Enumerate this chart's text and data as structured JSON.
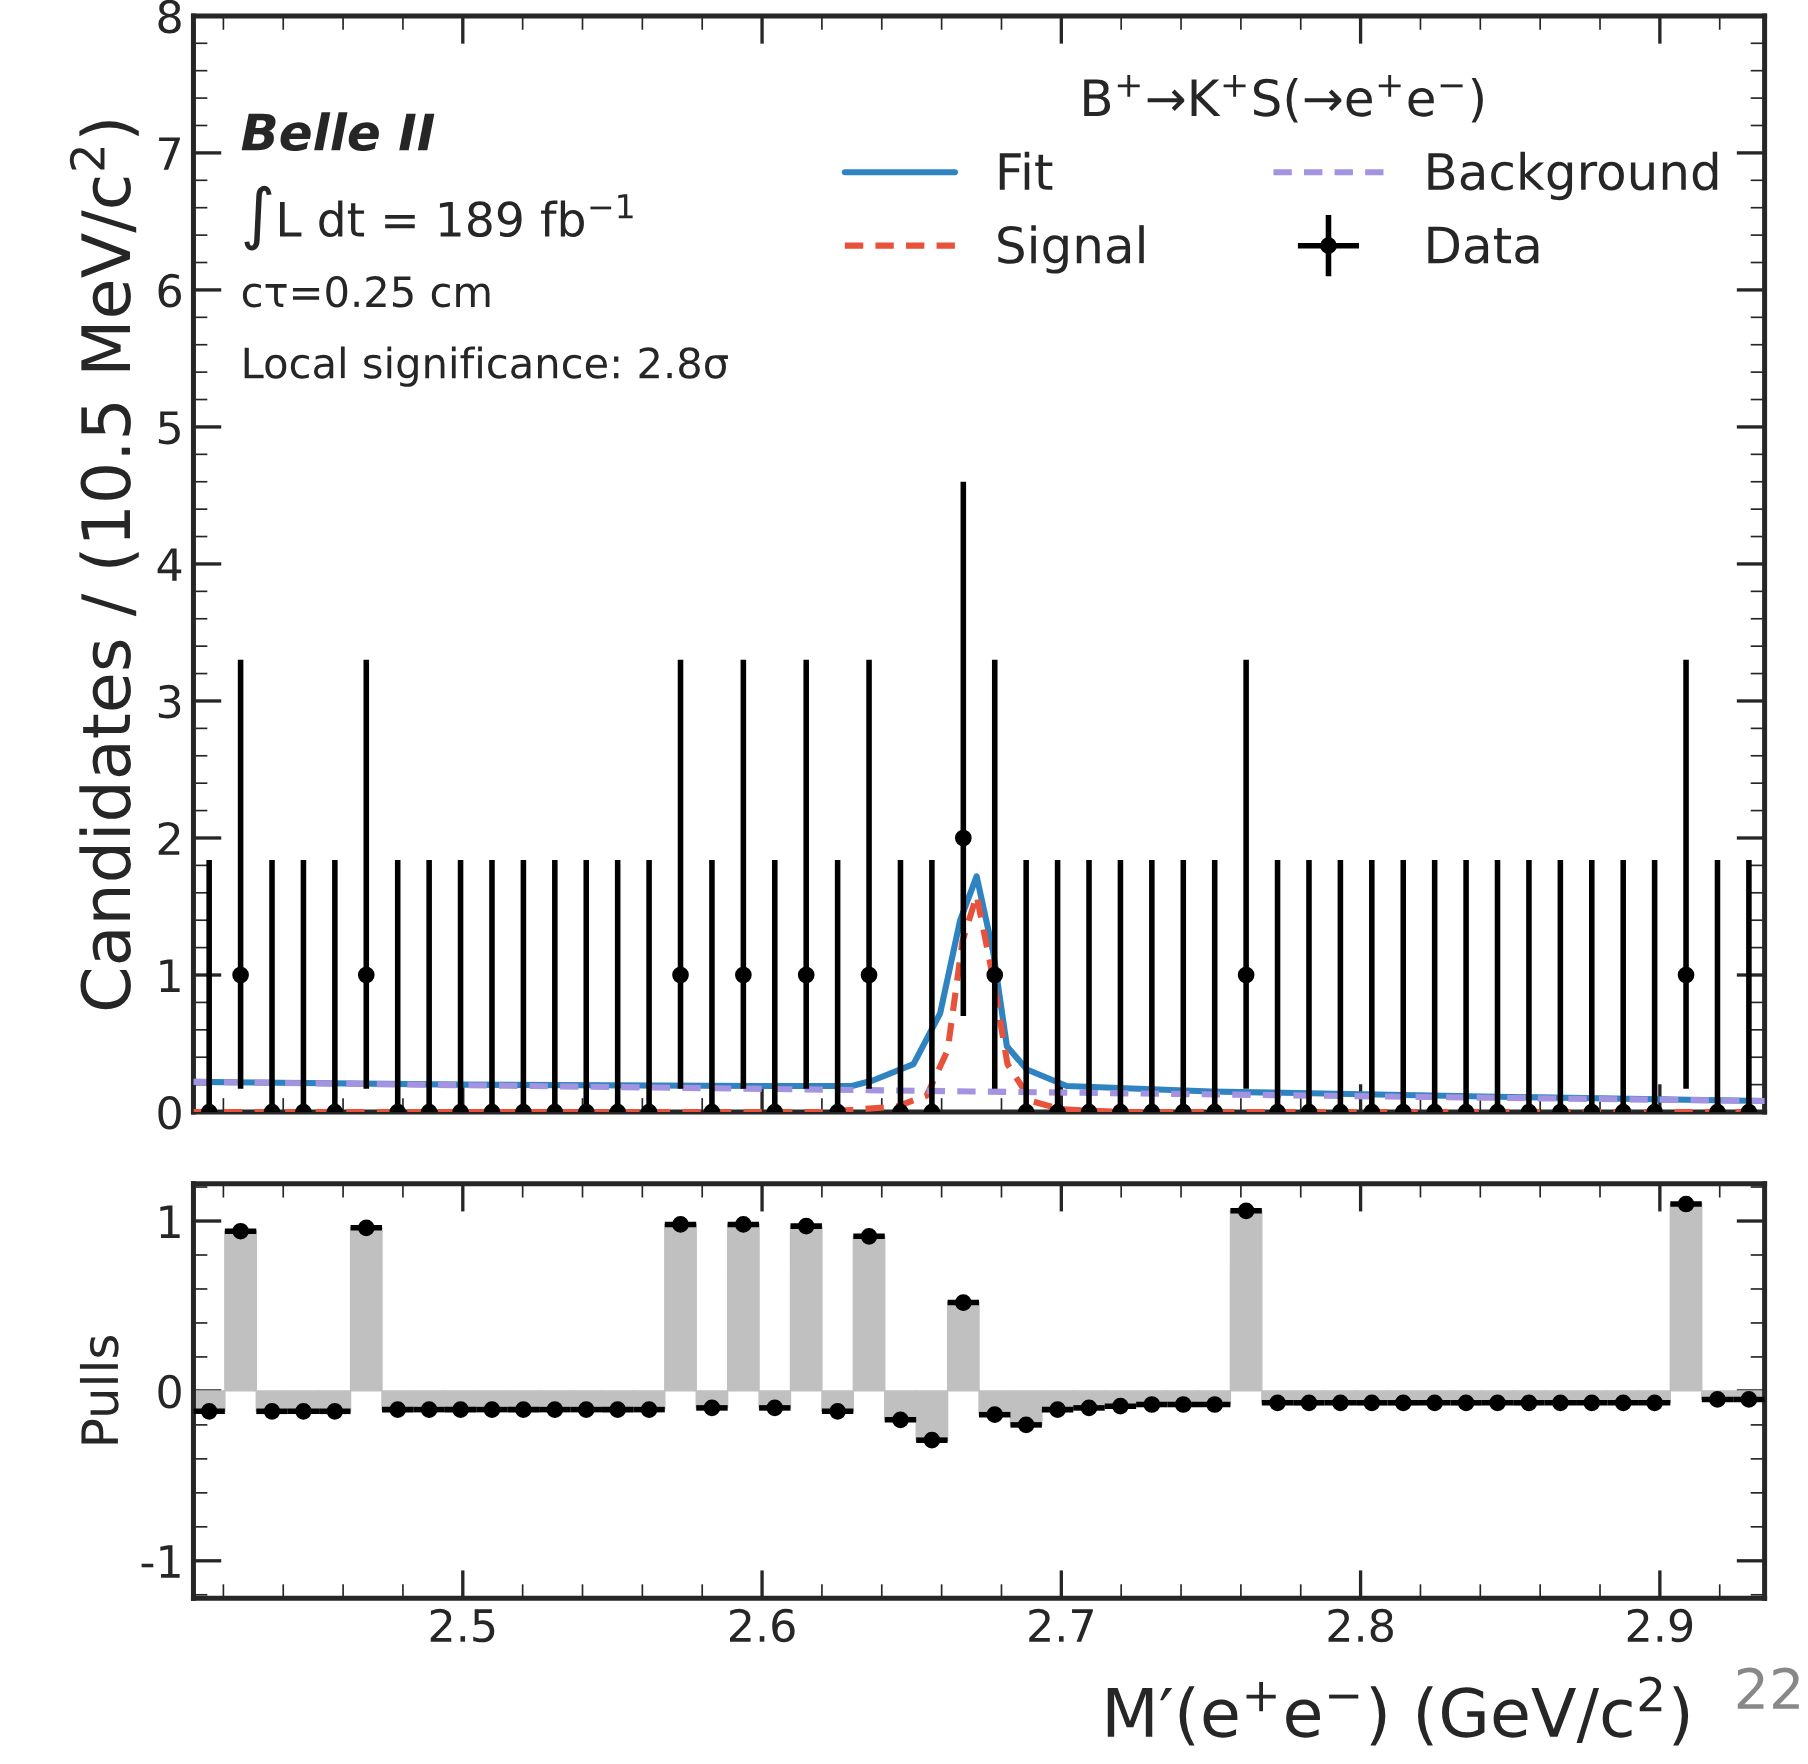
{
  "chart_data": [
    {
      "type": "line",
      "ylabel": "Candidates / (10.5 MeV/c$^{2}$)",
      "legend_title": "B$^{+}$→K$^{+}$S(→e$^{+}$e$^{−}$)",
      "legend": "top right",
      "grid": false,
      "tick_labels": "y",
      "annotations": [
        "Belle II",
        "∫L dt = 189 fb$^{−1}$",
        "cτ=0.25 cm",
        "Local significance: 2.8σ"
      ],
      "xlim": [
        2.41,
        2.935
      ],
      "ylim": [
        0,
        8
      ],
      "yticks": [
        0,
        1,
        2,
        3,
        4,
        5,
        6,
        7,
        8
      ],
      "series": [
        {
          "name": "Fit",
          "color": "#2f83c0",
          "line_style": "solid",
          "x": [
            2.41,
            2.5,
            2.6,
            2.63,
            2.637,
            2.6506,
            2.6595,
            2.6662,
            2.6717,
            2.6773,
            2.6818,
            2.6885,
            2.7018,
            2.75,
            2.85,
            2.935
          ],
          "values": [
            0.22,
            0.2,
            0.19,
            0.19,
            0.23,
            0.35,
            0.72,
            1.4,
            1.72,
            1.16,
            0.48,
            0.31,
            0.19,
            0.15,
            0.11,
            0.08
          ]
        },
        {
          "name": "Signal",
          "color": "#e8523a",
          "line_style": "dashed",
          "x": [
            2.41,
            2.62,
            2.645,
            2.655,
            2.662,
            2.667,
            2.6717,
            2.677,
            2.682,
            2.69,
            2.7,
            2.72,
            2.935
          ],
          "values": [
            0,
            0,
            0.04,
            0.12,
            0.45,
            1.25,
            1.58,
            1.0,
            0.35,
            0.08,
            0.02,
            0,
            0
          ]
        },
        {
          "name": "Background",
          "color": "#a393e0",
          "line_style": "dashed",
          "x": [
            2.41,
            2.67,
            2.935
          ],
          "values": [
            0.22,
            0.15,
            0.08
          ]
        },
        {
          "name": "Data",
          "type": "scatter",
          "color": "#000000",
          "marker": "circle",
          "x": [
            2.41525,
            2.42575,
            2.43625,
            2.44675,
            2.45725,
            2.46775,
            2.47825,
            2.48875,
            2.49925,
            2.50975,
            2.52025,
            2.53075,
            2.54125,
            2.55175,
            2.56225,
            2.57275,
            2.58325,
            2.59375,
            2.60425,
            2.61475,
            2.62525,
            2.63575,
            2.64625,
            2.65675,
            2.66725,
            2.67775,
            2.68825,
            2.69875,
            2.70925,
            2.71975,
            2.73025,
            2.74075,
            2.75125,
            2.76175,
            2.77225,
            2.78275,
            2.79325,
            2.80375,
            2.81425,
            2.82475,
            2.83525,
            2.84575,
            2.85625,
            2.86675,
            2.87725,
            2.88775,
            2.89825,
            2.90875,
            2.91925,
            2.92975
          ],
          "values": [
            0,
            1,
            0,
            0,
            0,
            1,
            0,
            0,
            0,
            0,
            0,
            0,
            0,
            0,
            0,
            1,
            0,
            1,
            0,
            1,
            0,
            1,
            0,
            0,
            2,
            1,
            0,
            0,
            0,
            0,
            0,
            0,
            0,
            1,
            0,
            0,
            0,
            0,
            0,
            0,
            0,
            0,
            0,
            0,
            0,
            0,
            0,
            1,
            0,
            0
          ],
          "errors": [
            [
              0,
              1.84
            ],
            [
              0.17,
              3.3
            ],
            [
              0,
              1.84
            ],
            [
              0,
              1.84
            ],
            [
              0,
              1.84
            ],
            [
              0.17,
              3.3
            ],
            [
              0,
              1.84
            ],
            [
              0,
              1.84
            ],
            [
              0,
              1.84
            ],
            [
              0,
              1.84
            ],
            [
              0,
              1.84
            ],
            [
              0,
              1.84
            ],
            [
              0,
              1.84
            ],
            [
              0,
              1.84
            ],
            [
              0,
              1.84
            ],
            [
              0.17,
              3.3
            ],
            [
              0,
              1.84
            ],
            [
              0.17,
              3.3
            ],
            [
              0,
              1.84
            ],
            [
              0.17,
              3.3
            ],
            [
              0,
              1.84
            ],
            [
              0.17,
              3.3
            ],
            [
              0,
              1.84
            ],
            [
              0,
              1.84
            ],
            [
              0.7,
              4.6
            ],
            [
              0.17,
              3.3
            ],
            [
              0,
              1.84
            ],
            [
              0,
              1.84
            ],
            [
              0,
              1.84
            ],
            [
              0,
              1.84
            ],
            [
              0,
              1.84
            ],
            [
              0,
              1.84
            ],
            [
              0,
              1.84
            ],
            [
              0.17,
              3.3
            ],
            [
              0,
              1.84
            ],
            [
              0,
              1.84
            ],
            [
              0,
              1.84
            ],
            [
              0,
              1.84
            ],
            [
              0,
              1.84
            ],
            [
              0,
              1.84
            ],
            [
              0,
              1.84
            ],
            [
              0,
              1.84
            ],
            [
              0,
              1.84
            ],
            [
              0,
              1.84
            ],
            [
              0,
              1.84
            ],
            [
              0,
              1.84
            ],
            [
              0,
              1.84
            ],
            [
              0.17,
              3.3
            ],
            [
              0,
              1.84
            ],
            [
              0,
              1.84
            ]
          ]
        }
      ]
    },
    {
      "type": "bar",
      "xlabel": "M′(e$^{+}$e$^{−}$) (GeV/c$^{2}$)",
      "ylabel": "Pulls",
      "grid": false,
      "legend": false,
      "annotations": [
        "22"
      ],
      "xlim": [
        2.41,
        2.935
      ],
      "xticks": [
        2.5,
        2.6,
        2.7,
        2.8,
        2.9
      ],
      "ylim": [
        -1.22,
        1.22
      ],
      "yticks": [
        -1,
        0,
        1
      ],
      "x": [
        2.41525,
        2.42575,
        2.43625,
        2.44675,
        2.45725,
        2.46775,
        2.47825,
        2.48875,
        2.49925,
        2.50975,
        2.52025,
        2.53075,
        2.54125,
        2.55175,
        2.56225,
        2.57275,
        2.58325,
        2.59375,
        2.60425,
        2.61475,
        2.62525,
        2.63575,
        2.64625,
        2.65675,
        2.66725,
        2.67775,
        2.68825,
        2.69875,
        2.70925,
        2.71975,
        2.73025,
        2.74075,
        2.75125,
        2.76175,
        2.77225,
        2.78275,
        2.79325,
        2.80375,
        2.81425,
        2.82475,
        2.83525,
        2.84575,
        2.85625,
        2.86675,
        2.87725,
        2.88775,
        2.89825,
        2.90875,
        2.91925,
        2.92975
      ],
      "series": [
        {
          "color": "#c0c0c0",
          "values": [
            -0.12,
            0.94,
            -0.12,
            -0.12,
            -0.12,
            0.96,
            -0.11,
            -0.11,
            -0.11,
            -0.11,
            -0.11,
            -0.11,
            -0.11,
            -0.11,
            -0.11,
            0.98,
            -0.1,
            0.98,
            -0.1,
            0.97,
            -0.12,
            0.91,
            -0.17,
            -0.29,
            0.52,
            -0.14,
            -0.2,
            -0.11,
            -0.1,
            -0.09,
            -0.08,
            -0.08,
            -0.08,
            1.06,
            -0.07,
            -0.07,
            -0.07,
            -0.07,
            -0.07,
            -0.07,
            -0.07,
            -0.07,
            -0.07,
            -0.07,
            -0.07,
            -0.07,
            -0.07,
            1.1,
            -0.05,
            -0.05
          ]
        },
        {
          "type": "scatter",
          "color": "#000000",
          "marker": "circle",
          "values": [
            -0.12,
            0.94,
            -0.12,
            -0.12,
            -0.12,
            0.96,
            -0.11,
            -0.11,
            -0.11,
            -0.11,
            -0.11,
            -0.11,
            -0.11,
            -0.11,
            -0.11,
            0.98,
            -0.1,
            0.98,
            -0.1,
            0.97,
            -0.12,
            0.91,
            -0.17,
            -0.29,
            0.52,
            -0.14,
            -0.2,
            -0.11,
            -0.1,
            -0.09,
            -0.08,
            -0.08,
            -0.08,
            1.06,
            -0.07,
            -0.07,
            -0.07,
            -0.07,
            -0.07,
            -0.07,
            -0.07,
            -0.07,
            -0.07,
            -0.07,
            -0.07,
            -0.07,
            -0.07,
            1.1,
            -0.05,
            -0.05
          ],
          "xerrors": [
            0.00525,
            0.00525,
            0.00525,
            0.00525,
            0.00525,
            0.00525,
            0.00525,
            0.00525,
            0.00525,
            0.00525,
            0.00525,
            0.00525,
            0.00525,
            0.00525,
            0.00525,
            0.00525,
            0.00525,
            0.00525,
            0.00525,
            0.00525,
            0.00525,
            0.00525,
            0.00525,
            0.00525,
            0.00525,
            0.00525,
            0.00525,
            0.00525,
            0.00525,
            0.00525,
            0.00525,
            0.00525,
            0.00525,
            0.00525,
            0.00525,
            0.00525,
            0.00525,
            0.00525,
            0.00525,
            0.00525,
            0.00525,
            0.00525,
            0.00525,
            0.00525,
            0.00525,
            0.00525,
            0.00525,
            0.00525,
            0.00525,
            0.00525
          ]
        }
      ]
    }
  ]
}
